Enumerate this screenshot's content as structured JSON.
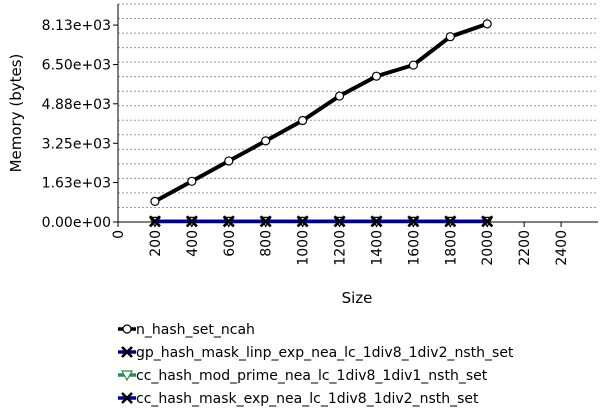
{
  "chart_data": {
    "type": "line",
    "title": "",
    "xlabel": "Size",
    "ylabel": "Memory (bytes)",
    "xlim": [
      0,
      2600
    ],
    "ylim": [
      0,
      9000
    ],
    "x_ticks": [
      0,
      200,
      400,
      600,
      800,
      1000,
      1200,
      1400,
      1600,
      1800,
      2000,
      2200,
      2400
    ],
    "x_tick_labels": [
      "0",
      "200",
      "400",
      "600",
      "800",
      "1000",
      "1200",
      "1400",
      "1600",
      "1800",
      "2000",
      "2200",
      "2400"
    ],
    "y_ticks": [
      0,
      1630,
      3250,
      4880,
      6500,
      8130
    ],
    "y_tick_labels": [
      "0.00e+00",
      "1.63e+03",
      "3.25e+03",
      "4.88e+03",
      "6.50e+03",
      "8.13e+03"
    ],
    "grid": true,
    "legend_placement": "bottom",
    "x": [
      200,
      400,
      600,
      800,
      1000,
      1200,
      1400,
      1600,
      1800,
      2000
    ],
    "series": [
      {
        "name": "n_hash_set_ncah",
        "color": "#000000",
        "marker": "circle",
        "values": [
          850,
          1680,
          2520,
          3350,
          4190,
          5200,
          6020,
          6480,
          7650,
          8180
        ]
      },
      {
        "name": "gp_hash_mask_linp_exp_nea_lc_1div8_1div2_nsth_set",
        "color": "#00008b",
        "marker": "x",
        "values": [
          25,
          25,
          25,
          25,
          25,
          25,
          25,
          25,
          25,
          25
        ]
      },
      {
        "name": "cc_hash_mod_prime_nea_lc_1div8_1div1_nsth_set",
        "color": "#2e8b57",
        "marker": "triangle-down",
        "values": [
          25,
          25,
          25,
          25,
          25,
          25,
          25,
          25,
          25,
          25
        ]
      },
      {
        "name": "cc_hash_mask_exp_nea_lc_1div8_1div2_nsth_set",
        "color": "#00008b",
        "marker": "x",
        "values": [
          25,
          25,
          25,
          25,
          25,
          25,
          25,
          25,
          25,
          25
        ]
      }
    ]
  }
}
